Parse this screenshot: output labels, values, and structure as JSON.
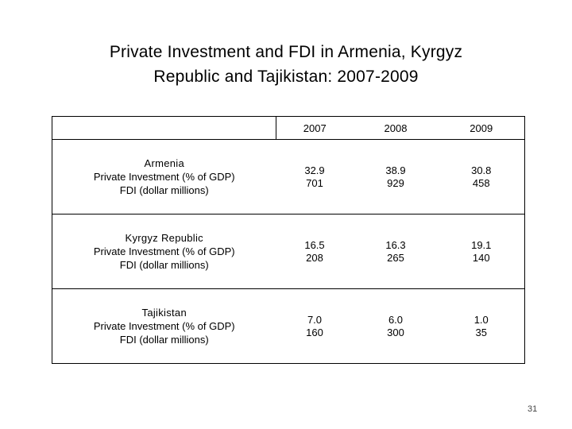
{
  "slide": {
    "title_line1": "Private Investment and FDI in Armenia, Kyrgyz",
    "title_line2": "Republic and Tajikistan: 2007-2009",
    "page_number": "31"
  },
  "table": {
    "years": [
      "2007",
      "2008",
      "2009"
    ],
    "rows": [
      {
        "country": "Armenia",
        "metric1": "Private Investment (% of GDP)",
        "metric2": "FDI (dollar millions)",
        "values": [
          {
            "investment": "32.9",
            "fdi": "701"
          },
          {
            "investment": "38.9",
            "fdi": "929"
          },
          {
            "investment": "30.8",
            "fdi": "458"
          }
        ]
      },
      {
        "country": "Kyrgyz Republic",
        "metric1": "Private Investment (% of GDP)",
        "metric2": "FDI (dollar millions)",
        "values": [
          {
            "investment": "16.5",
            "fdi": "208"
          },
          {
            "investment": "16.3",
            "fdi": "265"
          },
          {
            "investment": "19.1",
            "fdi": "140"
          }
        ]
      },
      {
        "country": "Tajikistan",
        "metric1": "Private Investment (% of GDP)",
        "metric2": "FDI (dollar millions)",
        "values": [
          {
            "investment": "7.0",
            "fdi": "160"
          },
          {
            "investment": "6.0",
            "fdi": "300"
          },
          {
            "investment": "1.0",
            "fdi": "35"
          }
        ]
      }
    ]
  }
}
